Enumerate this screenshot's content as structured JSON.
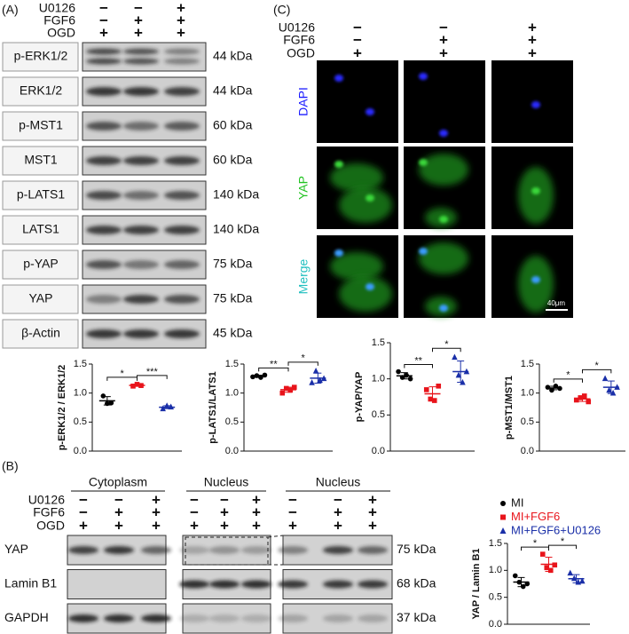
{
  "panel_a": {
    "label": "(A)",
    "conditions": [
      {
        "name": "U0126",
        "signs": [
          "−",
          "−",
          "+"
        ]
      },
      {
        "name": "FGF6",
        "signs": [
          "−",
          "+",
          "+"
        ]
      },
      {
        "name": "OGD",
        "signs": [
          "+",
          "+",
          "+"
        ]
      }
    ],
    "blots": [
      {
        "name": "p-ERK1/2",
        "size": "44 kDa"
      },
      {
        "name": "ERK1/2",
        "size": "44 kDa"
      },
      {
        "name": "p-MST1",
        "size": "60 kDa"
      },
      {
        "name": "MST1",
        "size": "60 kDa"
      },
      {
        "name": "p-LATS1",
        "size": "140 kDa"
      },
      {
        "name": "LATS1",
        "size": "140 kDa"
      },
      {
        "name": "p-YAP",
        "size": "75 kDa"
      },
      {
        "name": "YAP",
        "size": "75 kDa"
      },
      {
        "name": "β-Actin",
        "size": "45 kDa"
      }
    ]
  },
  "panel_c": {
    "label": "(C)",
    "conditions": [
      {
        "name": "U0126",
        "signs": [
          "−",
          "−",
          "+"
        ]
      },
      {
        "name": "FGF6",
        "signs": [
          "−",
          "+",
          "+"
        ]
      },
      {
        "name": "OGD",
        "signs": [
          "+",
          "+",
          "+"
        ]
      }
    ],
    "stains": [
      {
        "name": "DAPI",
        "color": "#1a1aff"
      },
      {
        "name": "YAP",
        "color": "#22c322"
      },
      {
        "name": "Merge",
        "color": "#1fbfbf"
      }
    ],
    "scale_bar": "40μm"
  },
  "panel_b": {
    "label": "(B)",
    "groups": [
      "Cytoplasm",
      "Nucleus",
      "Nucleus"
    ],
    "conditions": [
      {
        "name": "U0126",
        "signs": [
          "−",
          "−",
          "+",
          "−",
          "−",
          "+",
          "−",
          "−",
          "+"
        ]
      },
      {
        "name": "FGF6",
        "signs": [
          "−",
          "+",
          "+",
          "−",
          "+",
          "+",
          "−",
          "+",
          "+"
        ]
      },
      {
        "name": "OGD",
        "signs": [
          "+",
          "+",
          "+",
          "+",
          "+",
          "+",
          "+",
          "+",
          "+"
        ]
      }
    ],
    "blots": [
      {
        "name": "YAP",
        "size": "75 kDa"
      },
      {
        "name": "Lamin B1",
        "size": "68 kDa"
      },
      {
        "name": "GAPDH",
        "size": "37 kDa"
      }
    ]
  },
  "legend": [
    {
      "name": "MI",
      "color": "#000000",
      "marker": "circle"
    },
    {
      "name": "MI+FGF6",
      "color": "#e8141b",
      "marker": "square"
    },
    {
      "name": "MI+FGF6+U0126",
      "color": "#1a2fa8",
      "marker": "triangle"
    }
  ],
  "chart_data": [
    {
      "type": "scatter",
      "y_label": "p-ERK1/2 / ERK1/2",
      "ylim": [
        0,
        1.5
      ],
      "yticks": [
        {
          "value": 0,
          "label": "0.0"
        },
        {
          "value": 0.5,
          "label": "0.5"
        },
        {
          "value": 1,
          "label": "1.0"
        },
        {
          "value": 1.5,
          "label": "1.5"
        }
      ],
      "series": [
        {
          "color": "#000000",
          "marker": "circle",
          "values": [
            0.95,
            0.82,
            0.83
          ]
        },
        {
          "color": "#e8141b",
          "marker": "square",
          "values": [
            1.12,
            1.15,
            1.13
          ]
        },
        {
          "color": "#1a2fa8",
          "marker": "triangle",
          "values": [
            0.73,
            0.78,
            0.76
          ]
        }
      ],
      "annotations": [
        "*",
        "***"
      ]
    },
    {
      "type": "scatter",
      "y_label": "p-LATS1/LATS1",
      "ylim": [
        0,
        1.5
      ],
      "yticks": [
        {
          "value": 0,
          "label": "0.0"
        },
        {
          "value": 0.5,
          "label": "0.5"
        },
        {
          "value": 1,
          "label": "1.0"
        },
        {
          "value": 1.5,
          "label": "1.5"
        }
      ],
      "series": [
        {
          "color": "#000000",
          "marker": "circle",
          "values": [
            1.28,
            1.3,
            1.27,
            1.31
          ]
        },
        {
          "color": "#e8141b",
          "marker": "square",
          "values": [
            1.0,
            1.08,
            1.05,
            1.1
          ]
        },
        {
          "color": "#1a2fa8",
          "marker": "triangle",
          "values": [
            1.18,
            1.38,
            1.22,
            1.25
          ]
        }
      ],
      "annotations": [
        "**",
        "*"
      ]
    },
    {
      "type": "scatter",
      "y_label": "p-YAP/YAP",
      "ylim": [
        0,
        1.5
      ],
      "yticks": [
        {
          "value": 0,
          "label": "0.0"
        },
        {
          "value": 0.5,
          "label": "0.5"
        },
        {
          "value": 1,
          "label": "1.0"
        },
        {
          "value": 1.5,
          "label": "1.5"
        }
      ],
      "series": [
        {
          "color": "#000000",
          "marker": "circle",
          "values": [
            1.1,
            1.02,
            1.05,
            1.0
          ]
        },
        {
          "color": "#e8141b",
          "marker": "square",
          "values": [
            0.85,
            0.72,
            0.7,
            0.9
          ]
        },
        {
          "color": "#1a2fa8",
          "marker": "triangle",
          "values": [
            1.3,
            1.05,
            0.95,
            1.1
          ]
        }
      ],
      "annotations": [
        "**",
        "*"
      ]
    },
    {
      "type": "scatter",
      "y_label": "p-MST1/MST1",
      "ylim": [
        0,
        1.5
      ],
      "yticks": [
        {
          "value": 0,
          "label": "0.0"
        },
        {
          "value": 0.5,
          "label": "0.5"
        },
        {
          "value": 1,
          "label": "1.0"
        },
        {
          "value": 1.5,
          "label": "1.5"
        }
      ],
      "series": [
        {
          "color": "#000000",
          "marker": "circle",
          "values": [
            1.1,
            1.05,
            1.12,
            1.08
          ]
        },
        {
          "color": "#e8141b",
          "marker": "square",
          "values": [
            0.88,
            0.92,
            0.95,
            0.85
          ]
        },
        {
          "color": "#1a2fa8",
          "marker": "triangle",
          "values": [
            1.25,
            1.05,
            1.0,
            1.1
          ]
        }
      ],
      "annotations": [
        "*",
        "*"
      ]
    },
    {
      "type": "scatter",
      "y_label": "YAP / Lamin B1",
      "ylim": [
        0,
        1.5
      ],
      "yticks": [
        {
          "value": 0,
          "label": "0.0"
        },
        {
          "value": 0.5,
          "label": "0.5"
        },
        {
          "value": 1,
          "label": "1.0"
        },
        {
          "value": 1.5,
          "label": "1.5"
        }
      ],
      "series": [
        {
          "color": "#000000",
          "marker": "circle",
          "values": [
            0.9,
            0.78,
            0.7,
            0.75
          ]
        },
        {
          "color": "#e8141b",
          "marker": "square",
          "values": [
            1.3,
            1.05,
            1.0,
            1.1
          ]
        },
        {
          "color": "#1a2fa8",
          "marker": "triangle",
          "values": [
            0.95,
            0.85,
            0.78,
            0.8
          ]
        }
      ],
      "annotations": [
        "*",
        "*"
      ]
    }
  ]
}
